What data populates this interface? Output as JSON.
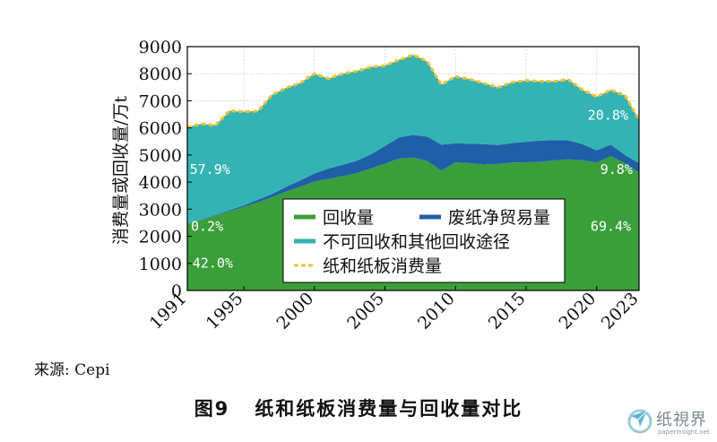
{
  "chart_data": {
    "type": "area",
    "stacked": true,
    "title": "",
    "xlabel": "",
    "ylabel": "消费量或回收量/万t",
    "xlim": [
      1991,
      2023
    ],
    "ylim": [
      0,
      9000
    ],
    "y_ticks": [
      0,
      1000,
      2000,
      3000,
      4000,
      5000,
      6000,
      7000,
      8000,
      9000
    ],
    "x_ticks": [
      1991,
      1995,
      2000,
      2005,
      2010,
      2015,
      2020,
      2023
    ],
    "grid": true,
    "legend_position": "bottom-center",
    "x": [
      1991,
      1992,
      1993,
      1994,
      1995,
      1996,
      1997,
      1998,
      1999,
      2000,
      2001,
      2002,
      2003,
      2004,
      2005,
      2006,
      2007,
      2008,
      2009,
      2010,
      2011,
      2012,
      2013,
      2014,
      2015,
      2016,
      2017,
      2018,
      2019,
      2020,
      2021,
      2022,
      2023
    ],
    "series": [
      {
        "name": "回收量",
        "color": "#3a9e3a",
        "values": [
          2460,
          2600,
          2760,
          2920,
          3080,
          3260,
          3440,
          3650,
          3830,
          4020,
          4120,
          4220,
          4330,
          4500,
          4680,
          4870,
          4900,
          4780,
          4420,
          4730,
          4700,
          4650,
          4670,
          4720,
          4730,
          4750,
          4800,
          4840,
          4800,
          4720,
          4960,
          4700,
          4350
        ]
      },
      {
        "name": "废纸净贸易量",
        "color": "#1f5fa8",
        "values": [
          10,
          15,
          25,
          40,
          60,
          90,
          120,
          170,
          230,
          300,
          380,
          420,
          460,
          520,
          650,
          780,
          840,
          900,
          960,
          700,
          720,
          750,
          700,
          720,
          760,
          780,
          750,
          700,
          600,
          450,
          420,
          300,
          350
        ]
      },
      {
        "name": "不可回收和其他回收途径",
        "color": "#33b3b3",
        "values": [
          3560,
          3530,
          3320,
          3670,
          3460,
          3270,
          3660,
          3660,
          3600,
          3680,
          3320,
          3360,
          3310,
          3230,
          2970,
          2860,
          2960,
          2770,
          2220,
          2470,
          2380,
          2250,
          2130,
          2240,
          2260,
          2190,
          2170,
          2240,
          2000,
          1980,
          2020,
          2200,
          1600
        ]
      }
    ],
    "total_line": {
      "name": "纸和纸板消费量",
      "color": "#f2c230",
      "values": [
        6030,
        6145,
        6105,
        6630,
        6600,
        6620,
        7220,
        7480,
        7660,
        8000,
        7820,
        8000,
        8100,
        8250,
        8300,
        8510,
        8700,
        8450,
        7600,
        7900,
        7800,
        7650,
        7500,
        7680,
        7750,
        7720,
        7720,
        7780,
        7400,
        7150,
        7400,
        7200,
        6300
      ]
    },
    "annotations": [
      {
        "text": "42.0%",
        "x": 1992.8,
        "y": 850
      },
      {
        "text": "0.2%",
        "x": 1992.4,
        "y": 2200
      },
      {
        "text": "57.9%",
        "x": 1992.6,
        "y": 4300
      },
      {
        "text": "69.4%",
        "x": 2021,
        "y": 2200
      },
      {
        "text": "9.8%",
        "x": 2021.4,
        "y": 4300
      },
      {
        "text": "20.8%",
        "x": 2020.8,
        "y": 6300
      }
    ]
  },
  "source_text": "来源: Cepi",
  "caption": {
    "number": "图9",
    "text": "纸和纸板消费量与回收量对比"
  },
  "logo": {
    "name": "纸視界",
    "subtext": "paperinsight.net"
  }
}
